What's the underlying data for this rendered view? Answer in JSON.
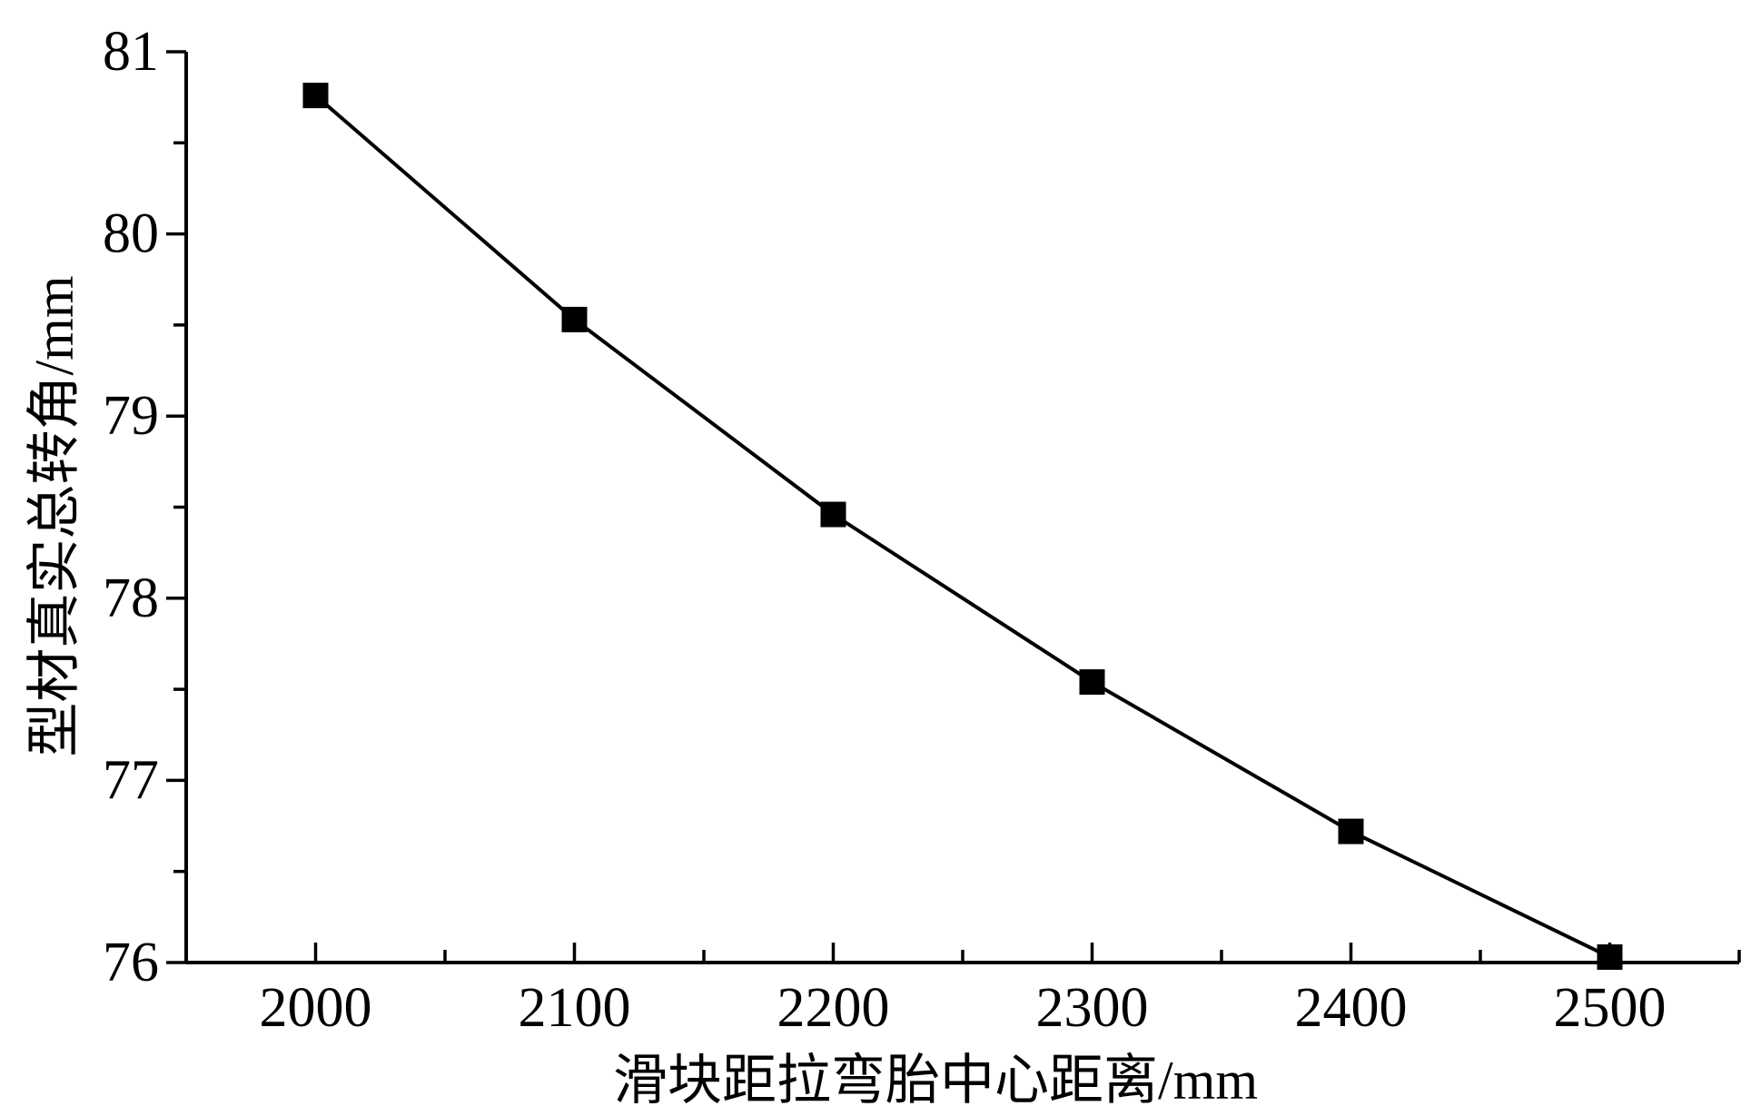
{
  "chart_data": {
    "type": "line",
    "title": "",
    "xlabel": "滑块距拉弯胎中心距离/mm",
    "ylabel": "型材真实总转角/mm",
    "xlim": [
      1950,
      2550
    ],
    "ylim": [
      76,
      81
    ],
    "x_ticks": [
      2000,
      2100,
      2200,
      2300,
      2400,
      2500
    ],
    "y_ticks": [
      76,
      77,
      78,
      79,
      80,
      81
    ],
    "x_tick_labels": [
      "2000",
      "2100",
      "2200",
      "2300",
      "2400",
      "2500"
    ],
    "y_tick_labels": [
      "76",
      "77",
      "78",
      "79",
      "80",
      "81"
    ],
    "grid": false,
    "marker": "square",
    "series": [
      {
        "x": [
          2000,
          2100,
          2200,
          2300,
          2400,
          2500
        ],
        "y": [
          80.76,
          79.53,
          78.46,
          77.54,
          76.72,
          76.03
        ]
      }
    ]
  }
}
